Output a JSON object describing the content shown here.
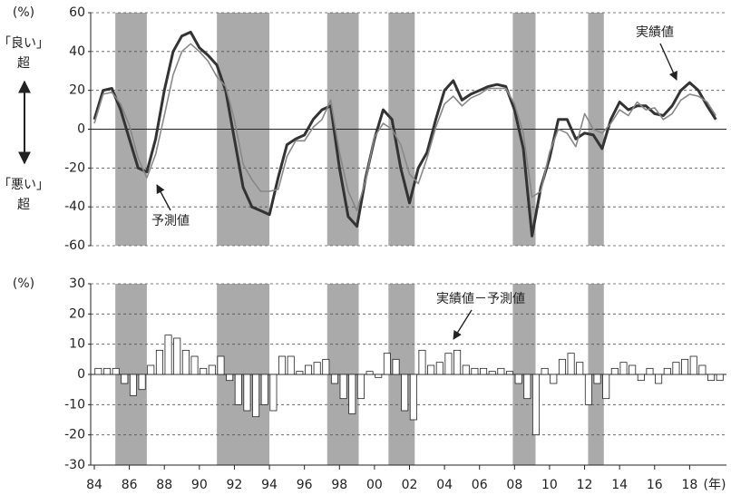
{
  "chart_data": [
    {
      "type": "line",
      "y_unit_label": "(%)",
      "y_label_upper": [
        "「良い」",
        "超"
      ],
      "y_label_lower": [
        "「悪い」",
        "超"
      ],
      "x": [
        1984,
        1984.5,
        1985,
        1985.5,
        1986,
        1986.5,
        1987,
        1987.5,
        1988,
        1988.5,
        1989,
        1989.5,
        1990,
        1990.5,
        1991,
        1991.5,
        1992,
        1992.5,
        1993,
        1993.5,
        1994,
        1994.5,
        1995,
        1995.5,
        1996,
        1996.5,
        1997,
        1997.5,
        1998,
        1998.5,
        1999,
        1999.5,
        2000,
        2000.5,
        2001,
        2001.5,
        2002,
        2002.5,
        2003,
        2003.5,
        2004,
        2004.5,
        2005,
        2005.5,
        2006,
        2006.5,
        2007,
        2007.5,
        2008,
        2008.5,
        2009,
        2009.5,
        2010,
        2010.5,
        2011,
        2011.5,
        2012,
        2012.5,
        2013,
        2013.5,
        2014,
        2014.5,
        2015,
        2015.5,
        2016,
        2016.5,
        2017,
        2017.5,
        2018,
        2018.5,
        2019,
        2019.5
      ],
      "series": [
        {
          "name": "実績値",
          "color": "#333333",
          "line_width": 3,
          "values": [
            5,
            20,
            21,
            10,
            -5,
            -20,
            -22,
            -5,
            20,
            40,
            48,
            50,
            42,
            38,
            33,
            20,
            -5,
            -30,
            -40,
            -42,
            -44,
            -25,
            -8,
            -5,
            -3,
            5,
            10,
            12,
            -20,
            -45,
            -50,
            -25,
            -5,
            10,
            5,
            -20,
            -38,
            -20,
            -12,
            5,
            20,
            25,
            15,
            18,
            20,
            22,
            23,
            22,
            10,
            -10,
            -55,
            -30,
            -15,
            5,
            5,
            -5,
            -2,
            -3,
            -10,
            5,
            14,
            10,
            12,
            12,
            8,
            7,
            12,
            20,
            24,
            20,
            12,
            5
          ]
        },
        {
          "name": "予測値",
          "color": "#888888",
          "line_width": 1.6,
          "values": [
            3,
            18,
            19,
            13,
            2,
            -15,
            -25,
            -13,
            7,
            28,
            40,
            44,
            40,
            35,
            27,
            22,
            5,
            -18,
            -26,
            -32,
            -32,
            -31,
            -14,
            -6,
            -6,
            1,
            5,
            15,
            -12,
            -32,
            -42,
            -26,
            -4,
            3,
            0,
            -8,
            -23,
            -28,
            -15,
            1,
            13,
            17,
            12,
            16,
            18,
            21,
            21,
            21,
            13,
            -2,
            -35,
            -32,
            -12,
            0,
            -2,
            -9,
            8,
            0,
            -2,
            3,
            10,
            7,
            14,
            10,
            11,
            5,
            8,
            15,
            18,
            17,
            14,
            7
          ]
        }
      ],
      "xlim": [
        1984,
        2020
      ],
      "ylim": [
        -60,
        60
      ],
      "yticks": [
        -60,
        -40,
        -20,
        0,
        20,
        40,
        60
      ],
      "grid": true,
      "shaded_periods": [
        [
          1985.2,
          1987.0
        ],
        [
          1991.0,
          1994.0
        ],
        [
          1997.3,
          1999.1
        ],
        [
          2000.8,
          2002.3
        ],
        [
          2007.9,
          2009.2
        ],
        [
          2012.2,
          2013.1
        ]
      ],
      "shade_color": "#aaaaaa"
    },
    {
      "type": "bar",
      "y_unit_label": "(%)",
      "x_unit_label": "(年)",
      "x": [
        1984,
        1984.5,
        1985,
        1985.5,
        1986,
        1986.5,
        1987,
        1987.5,
        1988,
        1988.5,
        1989,
        1989.5,
        1990,
        1990.5,
        1991,
        1991.5,
        1992,
        1992.5,
        1993,
        1993.5,
        1994,
        1994.5,
        1995,
        1995.5,
        1996,
        1996.5,
        1997,
        1997.5,
        1998,
        1998.5,
        1999,
        1999.5,
        2000,
        2000.5,
        2001,
        2001.5,
        2002,
        2002.5,
        2003,
        2003.5,
        2004,
        2004.5,
        2005,
        2005.5,
        2006,
        2006.5,
        2007,
        2007.5,
        2008,
        2008.5,
        2009,
        2009.5,
        2010,
        2010.5,
        2011,
        2011.5,
        2012,
        2012.5,
        2013,
        2013.5,
        2014,
        2014.5,
        2015,
        2015.5,
        2016,
        2016.5,
        2017,
        2017.5,
        2018,
        2018.5,
        2019,
        2019.5
      ],
      "series": [
        {
          "name": "実績値－予測値",
          "color": "#ffffff",
          "values": [
            2,
            2,
            2,
            -3,
            -7,
            -5,
            3,
            8,
            13,
            12,
            8,
            6,
            2,
            3,
            6,
            -2,
            -10,
            -12,
            -14,
            -10,
            -12,
            6,
            6,
            1,
            3,
            4,
            5,
            -3,
            -8,
            -13,
            -8,
            1,
            -1,
            7,
            5,
            -12,
            -15,
            8,
            3,
            4,
            7,
            8,
            3,
            2,
            2,
            1,
            2,
            1,
            -3,
            -8,
            -20,
            2,
            -3,
            5,
            7,
            4,
            -10,
            -3,
            -8,
            2,
            4,
            3,
            -2,
            2,
            -3,
            2,
            4,
            5,
            6,
            3,
            -2,
            -2
          ]
        }
      ],
      "xlim": [
        1984,
        2020
      ],
      "ylim": [
        -30,
        30
      ],
      "yticks": [
        -30,
        -20,
        -10,
        0,
        10,
        20,
        30
      ],
      "xticks": [
        {
          "value": 1984,
          "label": "84"
        },
        {
          "value": 1986,
          "label": "86"
        },
        {
          "value": 1988,
          "label": "88"
        },
        {
          "value": 1990,
          "label": "90"
        },
        {
          "value": 1992,
          "label": "92"
        },
        {
          "value": 1994,
          "label": "94"
        },
        {
          "value": 1996,
          "label": "96"
        },
        {
          "value": 1998,
          "label": "98"
        },
        {
          "value": 2000,
          "label": "00"
        },
        {
          "value": 2002,
          "label": "02"
        },
        {
          "value": 2004,
          "label": "04"
        },
        {
          "value": 2006,
          "label": "06"
        },
        {
          "value": 2008,
          "label": "08"
        },
        {
          "value": 2010,
          "label": "10"
        },
        {
          "value": 2012,
          "label": "12"
        },
        {
          "value": 2014,
          "label": "14"
        },
        {
          "value": 2016,
          "label": "16"
        },
        {
          "value": 2018,
          "label": "18"
        }
      ],
      "grid": true,
      "shaded_periods": [
        [
          1985.2,
          1987.0
        ],
        [
          1991.0,
          1994.0
        ],
        [
          1997.3,
          1999.1
        ],
        [
          2000.8,
          2002.3
        ],
        [
          2007.9,
          2009.2
        ],
        [
          2012.2,
          2013.1
        ]
      ],
      "shade_color": "#aaaaaa"
    }
  ]
}
